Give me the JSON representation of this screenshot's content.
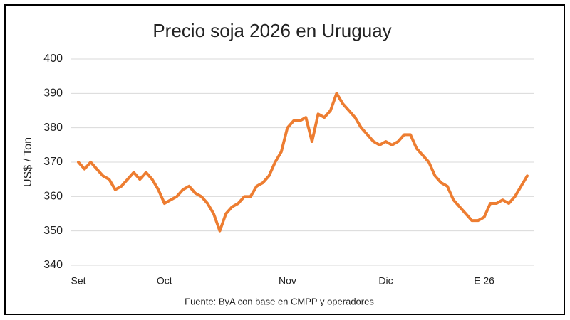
{
  "chart_data": {
    "type": "line",
    "title": "Precio soja 2026 en Uruguay",
    "y_label": "US$ / Ton",
    "source": "Fuente: ByA con base en CMPP y operadores",
    "categories": [
      "Set",
      null,
      null,
      null,
      null,
      null,
      null,
      null,
      null,
      null,
      null,
      null,
      null,
      null,
      "Oct",
      null,
      null,
      null,
      null,
      null,
      null,
      null,
      null,
      null,
      null,
      null,
      null,
      null,
      null,
      null,
      null,
      null,
      null,
      null,
      "Nov",
      null,
      null,
      null,
      null,
      null,
      null,
      null,
      null,
      null,
      null,
      null,
      null,
      null,
      null,
      null,
      "Dic",
      null,
      null,
      null,
      null,
      null,
      null,
      null,
      null,
      null,
      null,
      null,
      null,
      null,
      null,
      null,
      "E 26",
      null,
      null,
      null,
      null,
      null,
      null,
      null
    ],
    "values": [
      370,
      368,
      370,
      368,
      366,
      365,
      362,
      363,
      365,
      367,
      365,
      367,
      365,
      362,
      358,
      359,
      360,
      362,
      363,
      361,
      360,
      358,
      355,
      350,
      355,
      357,
      358,
      360,
      360,
      363,
      364,
      366,
      370,
      373,
      380,
      382,
      382,
      383,
      376,
      384,
      383,
      385,
      390,
      387,
      385,
      383,
      380,
      378,
      376,
      375,
      376,
      375,
      376,
      378,
      378,
      374,
      372,
      370,
      366,
      364,
      363,
      359,
      357,
      355,
      353,
      353,
      354,
      358,
      358,
      359,
      358,
      360,
      363,
      366
    ],
    "color": "#ed7d31",
    "ylim": [
      340,
      400
    ],
    "yticks": [
      340,
      350,
      360,
      370,
      380,
      390,
      400
    ],
    "grid": true
  }
}
